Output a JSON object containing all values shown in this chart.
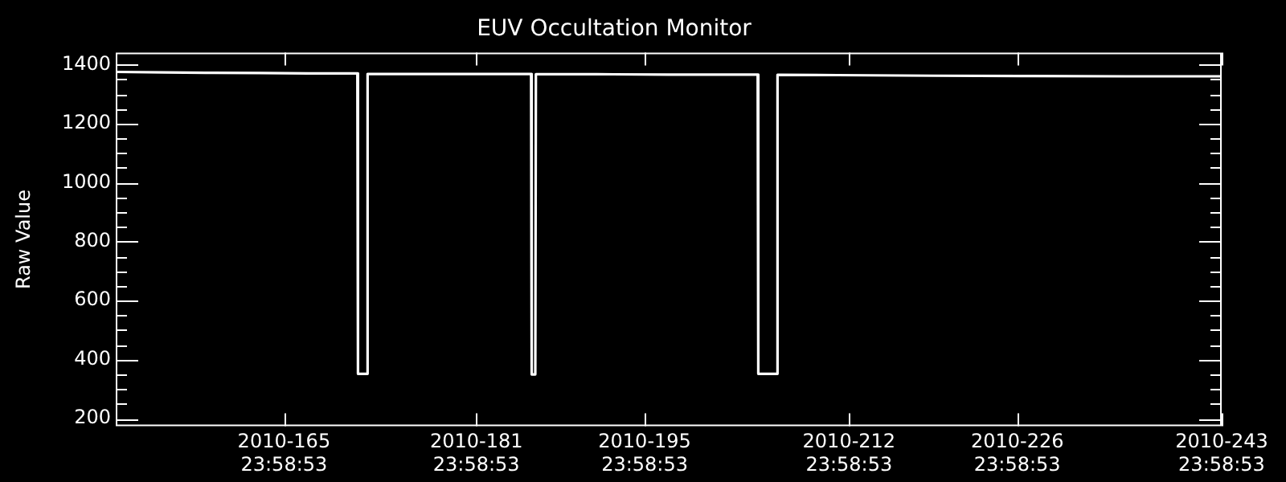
{
  "chart_data": {
    "type": "line",
    "title": "EUV Occultation Monitor",
    "ylabel": "Raw Value",
    "x": [
      "2010-06-01T00:00",
      "2010-06-05T00:00",
      "2010-06-09T00:00",
      "2010-06-13T00:00",
      "2010-06-17T00:00",
      "2010-06-21T02:24",
      "2010-06-21T03:36",
      "2010-06-21T21:36",
      "2010-06-21T22:48",
      "2010-06-27T00:00",
      "2010-07-01T00:00",
      "2010-07-05T13:12",
      "2010-07-05T14:24",
      "2010-07-05T21:36",
      "2010-07-05T22:48",
      "2010-07-11T00:00",
      "2010-07-17T00:00",
      "2010-07-24T09:36",
      "2010-07-24T10:48",
      "2010-07-26T00:00",
      "2010-07-26T01:12",
      "2010-07-31T00:00",
      "2010-08-08T00:00",
      "2010-08-16T00:00",
      "2010-08-24T00:00",
      "2010-08-31T23:58"
    ],
    "values": [
      1375,
      1373,
      1372,
      1371,
      1370,
      1370,
      352,
      352,
      1368,
      1368,
      1368,
      1368,
      350,
      350,
      1367,
      1367,
      1366,
      1366,
      352,
      352,
      1365,
      1364,
      1362,
      1361,
      1360,
      1360
    ],
    "color": "#ffffff",
    "line_style": "solid",
    "marker": "none",
    "grid": false,
    "legend": false,
    "xlim": [
      "2010-05-31T23:58:53",
      "2010-08-31T23:58:53"
    ],
    "xticks": [
      {
        "value": "2010-06-14T23:58:53",
        "label": "2010-165\n23:58:53"
      },
      {
        "value": "2010-06-30T23:58:53",
        "label": "2010-181\n23:58:53"
      },
      {
        "value": "2010-07-14T23:58:53",
        "label": "2010-195\n23:58:53"
      },
      {
        "value": "2010-07-31T23:58:53",
        "label": "2010-212\n23:58:53"
      },
      {
        "value": "2010-08-14T23:58:53",
        "label": "2010-226\n23:58:53"
      },
      {
        "value": "2010-08-31T23:58:53",
        "label": "2010-243\n23:58:53"
      }
    ],
    "ylim": [
      175,
      1440
    ],
    "yticks": [
      200,
      {
        "value": 250,
        "label": null
      },
      {
        "value": 300,
        "label": null
      },
      {
        "value": 350,
        "label": null
      },
      400,
      {
        "value": 450,
        "label": null
      },
      {
        "value": 500,
        "label": null
      },
      {
        "value": 550,
        "label": null
      },
      600,
      {
        "value": 650,
        "label": null
      },
      {
        "value": 700,
        "label": null
      },
      {
        "value": 750,
        "label": null
      },
      800,
      {
        "value": 850,
        "label": null
      },
      {
        "value": 900,
        "label": null
      },
      {
        "value": 950,
        "label": null
      },
      1000,
      {
        "value": 1050,
        "label": null
      },
      {
        "value": 1100,
        "label": null
      },
      {
        "value": 1150,
        "label": null
      },
      1200,
      {
        "value": 1250,
        "label": null
      },
      {
        "value": 1300,
        "label": null
      },
      {
        "value": 1350,
        "label": null
      },
      1400
    ]
  }
}
